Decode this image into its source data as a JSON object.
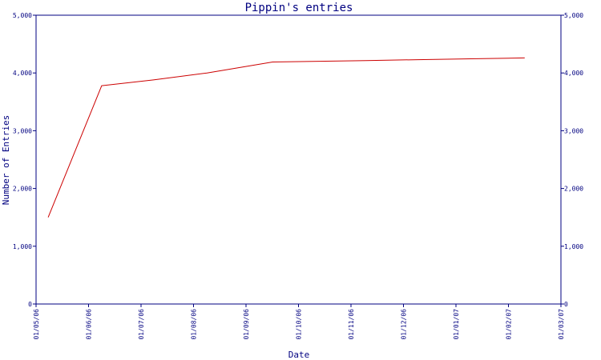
{
  "chart_data": {
    "type": "line",
    "title": "Pippin's entries",
    "xlabel": "Date",
    "ylabel": "Number of Entries",
    "x_ticks": [
      "01/05/06",
      "01/06/06",
      "01/07/06",
      "01/08/06",
      "01/09/06",
      "01/10/06",
      "01/11/06",
      "01/12/06",
      "01/01/07",
      "01/02/07",
      "01/03/07"
    ],
    "y_ticks": [
      "0",
      "1,000",
      "2,000",
      "3,000",
      "4,000",
      "5,000"
    ],
    "ylim": [
      0,
      5000
    ],
    "xlim": [
      "2006-05-01",
      "2007-03-01"
    ],
    "grid": false,
    "line_color": "#cc0000",
    "axis_color": "#000080",
    "series": [
      {
        "x": [
          "2006-05-08",
          "2006-06-08",
          "2006-07-08",
          "2006-08-08",
          "2006-09-15",
          "2006-10-08",
          "2006-11-08",
          "2006-12-08",
          "2007-01-08",
          "2007-02-08"
        ],
        "values": [
          1500,
          3780,
          3880,
          4000,
          4190,
          4200,
          4215,
          4230,
          4245,
          4260
        ]
      }
    ]
  }
}
